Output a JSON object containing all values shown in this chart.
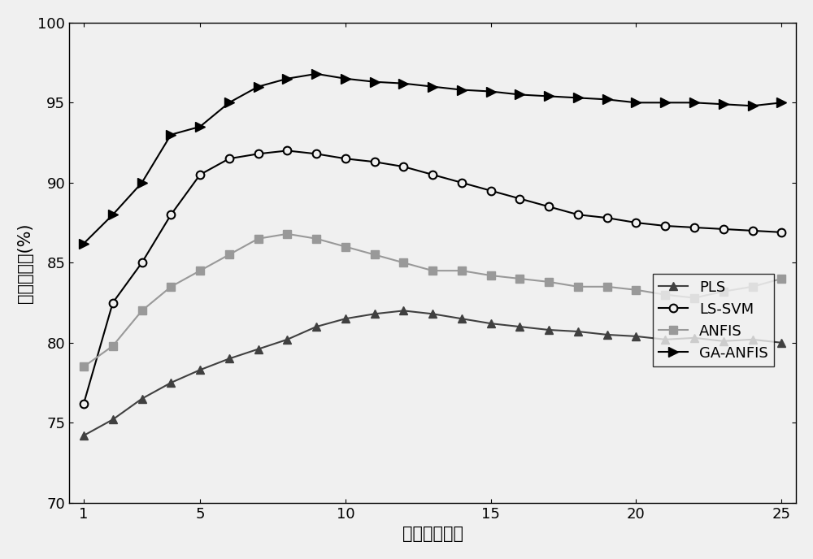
{
  "x": [
    1,
    2,
    3,
    4,
    5,
    6,
    7,
    8,
    9,
    10,
    11,
    12,
    13,
    14,
    15,
    16,
    17,
    18,
    19,
    20,
    21,
    22,
    23,
    24,
    25
  ],
  "PLS": [
    74.2,
    75.2,
    76.5,
    77.5,
    78.3,
    79.0,
    79.6,
    80.2,
    81.0,
    81.5,
    81.8,
    82.0,
    81.8,
    81.5,
    81.2,
    81.0,
    80.8,
    80.7,
    80.5,
    80.4,
    80.2,
    80.3,
    80.1,
    80.2,
    80.0
  ],
  "LS_SVM": [
    76.2,
    82.5,
    85.0,
    88.0,
    90.5,
    91.5,
    91.8,
    92.0,
    91.8,
    91.5,
    91.3,
    91.0,
    90.5,
    90.0,
    89.5,
    89.0,
    88.5,
    88.0,
    87.8,
    87.5,
    87.3,
    87.2,
    87.1,
    87.0,
    86.9
  ],
  "ANFIS": [
    78.5,
    79.8,
    82.0,
    83.5,
    84.5,
    85.5,
    86.5,
    86.8,
    86.5,
    86.0,
    85.5,
    85.0,
    84.5,
    84.5,
    84.2,
    84.0,
    83.8,
    83.5,
    83.5,
    83.3,
    83.0,
    82.8,
    83.2,
    83.5,
    84.0
  ],
  "GA_ANFIS": [
    86.2,
    88.0,
    90.0,
    93.0,
    93.5,
    95.0,
    96.0,
    96.5,
    96.8,
    96.5,
    96.3,
    96.2,
    96.0,
    95.8,
    95.7,
    95.5,
    95.4,
    95.3,
    95.2,
    95.0,
    95.0,
    95.0,
    94.9,
    94.8,
    95.0
  ],
  "PLS_color": "#404040",
  "LS_SVM_color": "#000000",
  "ANFIS_color": "#999999",
  "GA_ANFIS_color": "#000000",
  "xlabel": "特征参数维数",
  "ylabel": "分类正确率(%)",
  "xlim": [
    0.5,
    25.5
  ],
  "ylim": [
    70,
    100
  ],
  "yticks": [
    70,
    75,
    80,
    85,
    90,
    95,
    100
  ],
  "xticks": [
    1,
    5,
    10,
    15,
    20,
    25
  ],
  "figsize": [
    10.0,
    6.88
  ],
  "dpi": 100
}
